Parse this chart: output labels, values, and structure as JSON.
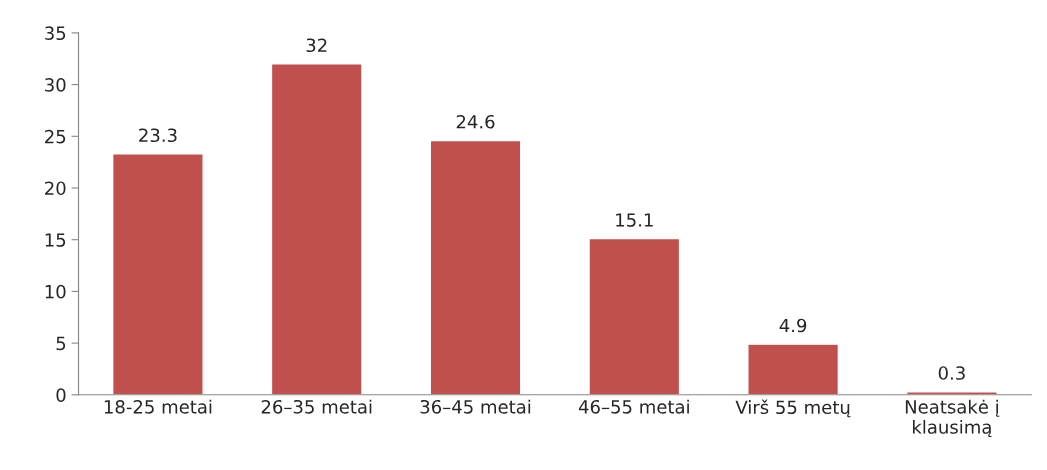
{
  "chart_data": {
    "type": "bar",
    "categories": [
      "18-25 metai",
      "26–35 metai",
      "36–45 metai",
      "46–55 metai",
      "Virš 55 metų",
      "Neatsakė į\nklausimą"
    ],
    "values": [
      23.3,
      32,
      24.6,
      15.1,
      4.9,
      0.3
    ],
    "color": "#c0504d",
    "ylim": [
      0,
      35
    ],
    "yticks": [
      0,
      5,
      10,
      15,
      20,
      25,
      30,
      35
    ],
    "data_labels": true,
    "grid": false,
    "legend": false
  }
}
